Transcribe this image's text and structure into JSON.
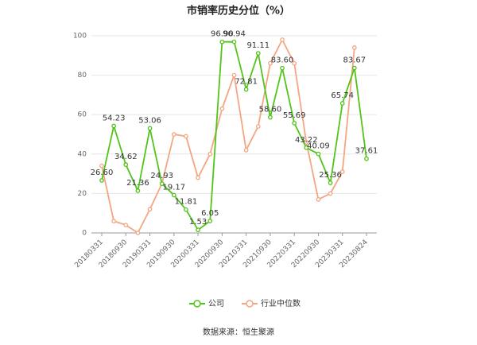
{
  "chart_data": {
    "type": "line",
    "title": "市销率历史分位（%）",
    "categories": [
      "20180331",
      null,
      "20180930",
      null,
      "20190331",
      null,
      "20190930",
      null,
      "20200331",
      null,
      "20200930",
      null,
      "20210331",
      null,
      "20210930",
      null,
      "20220331",
      null,
      "20220930",
      null,
      "20230331",
      null,
      "20230824"
    ],
    "series": [
      {
        "name": "公司",
        "color": "#52c41a",
        "values": [
          26.6,
          54.23,
          34.62,
          21.36,
          53.06,
          24.93,
          19.17,
          11.81,
          1.53,
          6.05,
          96.9,
          96.94,
          72.81,
          91.11,
          58.6,
          83.6,
          55.69,
          43.22,
          40.09,
          25.36,
          65.74,
          83.67,
          37.61
        ],
        "value_labels": [
          "26.60",
          "54.23",
          "34.62",
          "21.36",
          "53.06",
          "24.93",
          "19.17",
          "11.81",
          "1.53",
          "6.05",
          "96.90",
          "96.94",
          "72.81",
          "91.11",
          "58.60",
          "83.60",
          "55.69",
          "43.22",
          "40.09",
          "25.36",
          "65.74",
          "83.67",
          "37.61"
        ]
      },
      {
        "name": "行业中位数",
        "color": "#f4a582",
        "values": [
          34,
          6,
          4,
          0,
          12,
          25,
          50,
          49,
          28,
          40,
          63,
          80,
          42,
          54,
          86,
          98,
          86,
          46,
          17,
          20,
          31,
          94,
          null
        ]
      }
    ],
    "ylim": [
      0,
      100
    ],
    "yticks": [
      0,
      20,
      40,
      60,
      80,
      100
    ],
    "grid": true,
    "source": "数据来源：恒生聚源"
  }
}
